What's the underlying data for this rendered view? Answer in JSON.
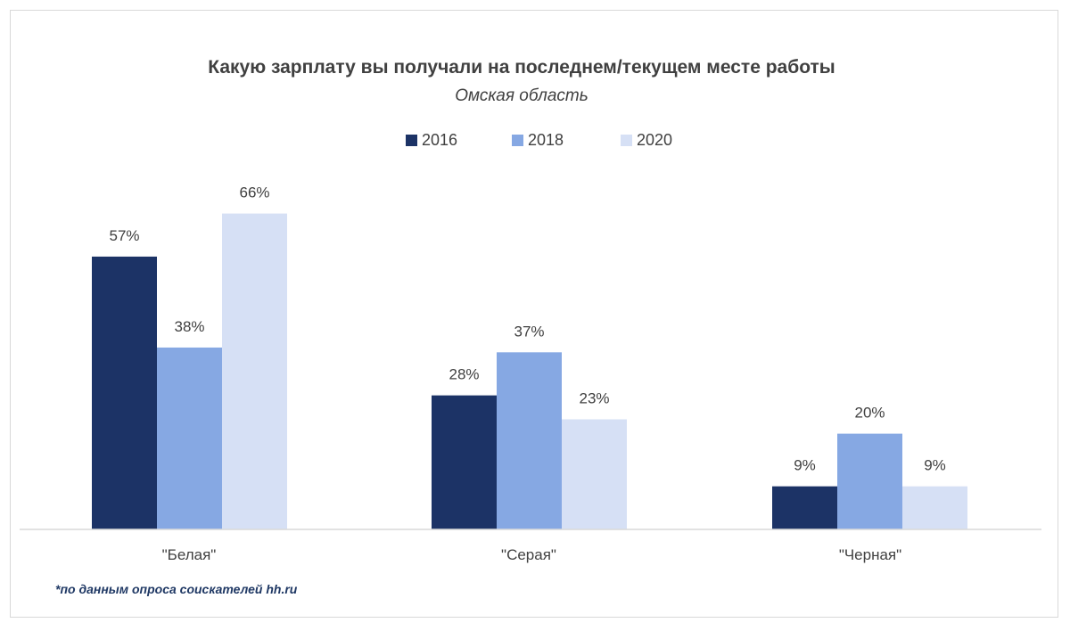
{
  "chart_data": {
    "type": "bar",
    "title": "Какую зарплату вы получали на последнем/текущем месте работы",
    "subtitle": "Омская область",
    "categories": [
      "\"Белая\"",
      "\"Серая\"",
      "\"Черная\""
    ],
    "series": [
      {
        "name": "2016",
        "values": [
          57,
          28,
          9
        ],
        "color": "#1c3366"
      },
      {
        "name": "2018",
        "values": [
          38,
          37,
          20
        ],
        "color": "#86a8e3"
      },
      {
        "name": "2020",
        "values": [
          66,
          23,
          9
        ],
        "color": "#d6e0f5"
      }
    ],
    "value_suffix": "%",
    "ylim": [
      0,
      70
    ],
    "legend_position": "top",
    "grid": false,
    "footnote": "*по данным опроса соискателей hh.ru"
  }
}
